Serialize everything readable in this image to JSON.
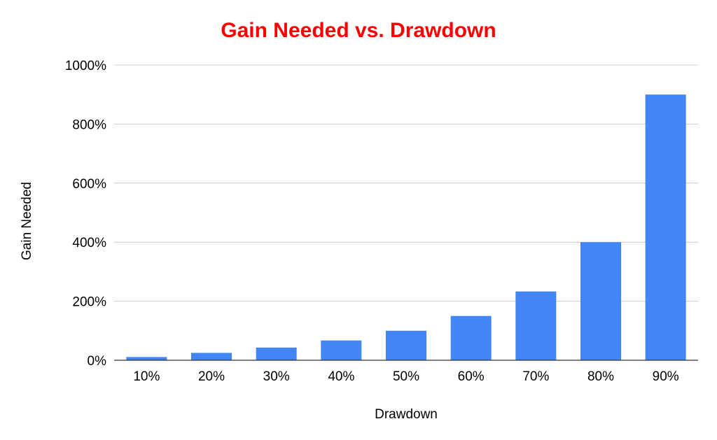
{
  "chart_data": {
    "type": "bar",
    "title": "Gain Needed vs. Drawdown",
    "xlabel": "Drawdown",
    "ylabel": "Gain Needed",
    "categories": [
      "10%",
      "20%",
      "30%",
      "40%",
      "50%",
      "60%",
      "70%",
      "80%",
      "90%"
    ],
    "series": [
      {
        "values": [
          11,
          25,
          43,
          67,
          100,
          150,
          233,
          400,
          900
        ]
      }
    ],
    "ylim": [
      0,
      1000
    ],
    "yticks": [
      0,
      200,
      400,
      600,
      800,
      1000
    ],
    "ytick_labels": [
      "0%",
      "200%",
      "400%",
      "600%",
      "800%",
      "1000%"
    ],
    "grid": true,
    "legend": "none",
    "colors": {
      "bar": "#4285f4",
      "title": "#ff0000"
    }
  }
}
